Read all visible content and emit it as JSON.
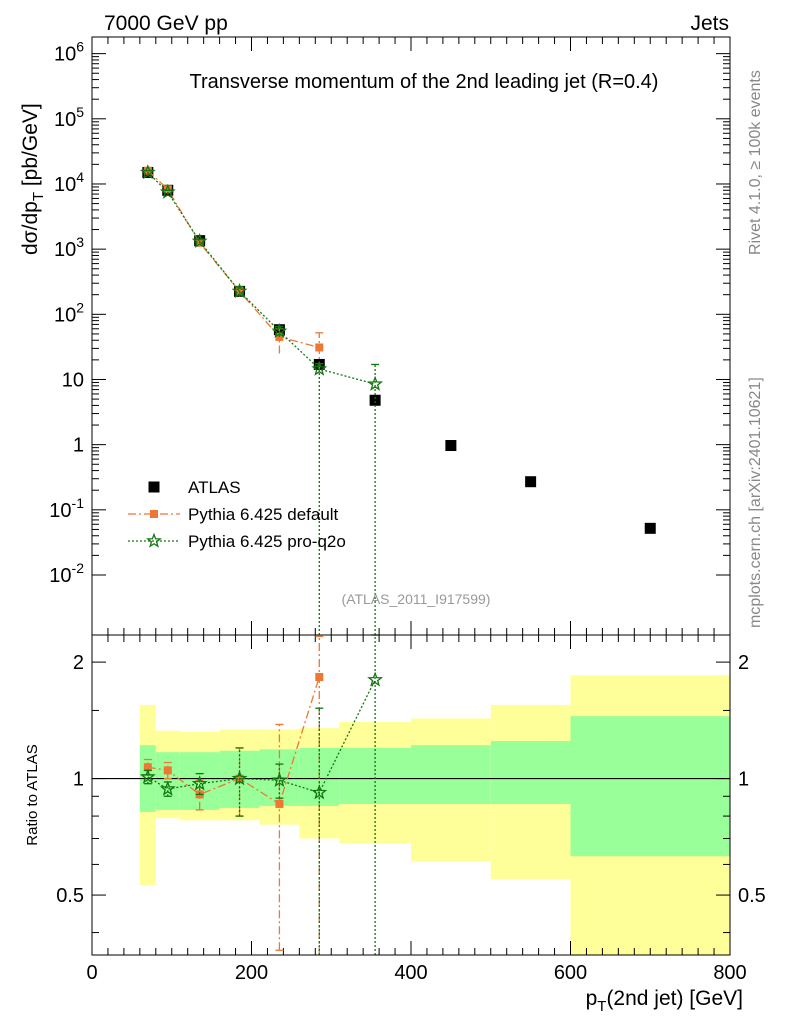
{
  "header": {
    "left": "7000 GeV pp",
    "right": "Jets",
    "title": "Transverse momentum of the 2nd leading jet (R=0.4)",
    "side_top": "Rivet 4.1.0, ≥ 100k events",
    "side_bottom": "mcplots.cern.ch [arXiv:2401.10621]",
    "analysis_tag": "(ATLAS_2011_I917599)"
  },
  "colors": {
    "atlas": "#000000",
    "pythia_default": "#ee7733",
    "pythia_proq2o": "#117711",
    "band_inner": "#99ff99",
    "band_outer": "#ffff99",
    "analysis_tag": "#999999",
    "side_text": "#888888"
  },
  "chart_data": [
    {
      "type": "scatter",
      "panel": "main",
      "title": "Transverse momentum of the 2nd leading jet (R=0.4)",
      "xlabel": "pT(2nd jet) [GeV]",
      "ylabel": "dσ/dpT [pb/GeV]",
      "xlim": [
        0,
        800
      ],
      "ylim": [
        0.0012,
        1800000
      ],
      "yscale": "log",
      "ytick_labels": [
        "10^6",
        "10^5",
        "10^4",
        "10^3",
        "10^2",
        "10",
        "1",
        "10^-1",
        "10^-2"
      ],
      "legend": {
        "placement": "bottom-left",
        "entries": [
          "ATLAS",
          "Pythia 6.425 default",
          "Pythia 6.425 pro-q2o"
        ]
      },
      "series": [
        {
          "name": "ATLAS",
          "marker": "square",
          "x": [
            70,
            95,
            135,
            185,
            235,
            285,
            355,
            450,
            550,
            700
          ],
          "y": [
            15000,
            8000,
            1350,
            225,
            58,
            17,
            4.8,
            0.97,
            0.27,
            0.052
          ]
        },
        {
          "name": "Pythia 6.425 default",
          "marker": "square",
          "line": "dashdot",
          "x": [
            70,
            95,
            135,
            185,
            235,
            285
          ],
          "y": [
            16000,
            8300,
            1250,
            225,
            45,
            31
          ],
          "yerr_low": [
            1000,
            500,
            100,
            40,
            20,
            17
          ],
          "yerr_high": [
            1000,
            500,
            100,
            40,
            15,
            21
          ]
        },
        {
          "name": "Pythia 6.425 pro-q2o",
          "marker": "star",
          "line": "dotted",
          "x": [
            70,
            95,
            135,
            185,
            235,
            285,
            355
          ],
          "y": [
            15000,
            7500,
            1320,
            225,
            55,
            14.5,
            8.5
          ],
          "yerr_low": [
            900,
            500,
            80,
            40,
            10,
            14.5,
            8.5
          ],
          "yerr_high": [
            900,
            500,
            80,
            40,
            10,
            3,
            8.5
          ]
        }
      ]
    },
    {
      "type": "scatter",
      "panel": "ratio",
      "ylabel": "Ratio to ATLAS",
      "xlabel": "pT(2nd jet) [GeV]",
      "xlim": [
        0,
        800
      ],
      "ylim": [
        0.35,
        2.35
      ],
      "yscale": "log",
      "yticks": [
        0.5,
        1,
        2
      ],
      "xticks": [
        0,
        200,
        400,
        600,
        800
      ],
      "reference_line": 1,
      "bins": [
        [
          60,
          80
        ],
        [
          80,
          110
        ],
        [
          110,
          160
        ],
        [
          160,
          210
        ],
        [
          210,
          260
        ],
        [
          260,
          310
        ],
        [
          310,
          400
        ],
        [
          400,
          500
        ],
        [
          500,
          600
        ],
        [
          600,
          800
        ]
      ],
      "band_inner": [
        [
          0.82,
          1.22
        ],
        [
          0.83,
          1.17
        ],
        [
          0.83,
          1.17
        ],
        [
          0.84,
          1.18
        ],
        [
          0.85,
          1.19
        ],
        [
          0.85,
          1.2
        ],
        [
          0.86,
          1.2
        ],
        [
          0.86,
          1.22
        ],
        [
          0.86,
          1.25
        ],
        [
          0.63,
          1.45
        ]
      ],
      "band_outer": [
        [
          0.53,
          1.55
        ],
        [
          0.79,
          1.33
        ],
        [
          0.78,
          1.32
        ],
        [
          0.78,
          1.34
        ],
        [
          0.76,
          1.34
        ],
        [
          0.7,
          1.35
        ],
        [
          0.68,
          1.4
        ],
        [
          0.61,
          1.43
        ],
        [
          0.55,
          1.55
        ],
        [
          0.35,
          1.85
        ]
      ],
      "series": [
        {
          "name": "Pythia 6.425 default",
          "x": [
            70,
            95,
            135,
            185,
            235,
            285
          ],
          "y": [
            1.07,
            1.05,
            0.91,
            1.0,
            0.86,
            1.83
          ],
          "yerr_low": [
            0.05,
            0.05,
            0.08,
            0.2,
            0.5,
            1.5
          ],
          "yerr_high": [
            0.05,
            0.05,
            0.08,
            0.2,
            0.52,
            0.5
          ]
        },
        {
          "name": "Pythia 6.425 pro-q2o",
          "x": [
            70,
            95,
            135,
            185,
            235,
            285,
            355
          ],
          "y": [
            1.01,
            0.94,
            0.97,
            1.0,
            0.99,
            0.92,
            1.8
          ],
          "yerr_low": [
            0.04,
            0.04,
            0.06,
            0.2,
            0.1,
            0.6,
            1.5
          ],
          "yerr_high": [
            0.04,
            0.04,
            0.06,
            0.2,
            0.1,
            0.6,
            0.6
          ]
        }
      ]
    }
  ]
}
